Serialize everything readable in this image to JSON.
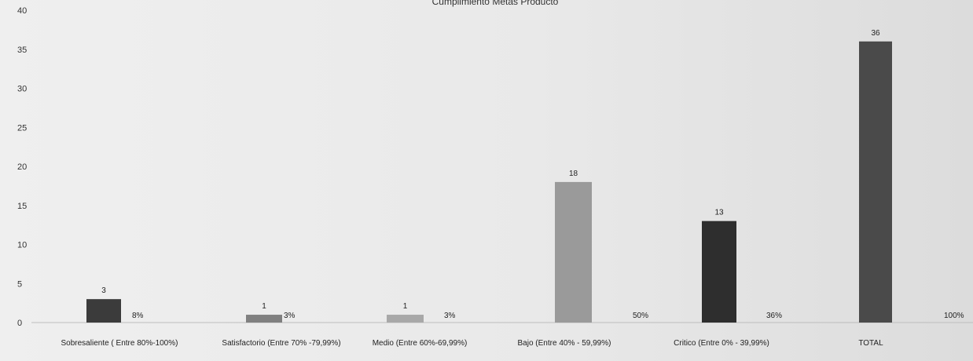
{
  "chart_data": {
    "type": "bar",
    "title": "Cumplimiento Metas Producto",
    "xlabel": "",
    "ylabel": "",
    "ylim": [
      0,
      40
    ],
    "yticks": [
      0,
      5,
      10,
      15,
      20,
      25,
      30,
      35,
      40
    ],
    "grid": false,
    "legend": "none",
    "categories": [
      "Sobresaliente  ( Entre 80%-100%)",
      "Satisfactorio (Entre 70% -79,99%)",
      "Medio (Entre 60%-69,99%)",
      "Bajo (Entre 40% - 59,99%)",
      "Critico (Entre 0% - 39,99%)",
      "TOTAL"
    ],
    "values": [
      3,
      1,
      1,
      18,
      13,
      36
    ],
    "percent_labels": [
      "8%",
      "3%",
      "3%",
      "50%",
      "36%",
      "100%"
    ],
    "colors": [
      "#3b3b3b",
      "#808080",
      "#a8a8a8",
      "#9a9a9a",
      "#2e2e2e",
      "#4a4a4a"
    ]
  }
}
